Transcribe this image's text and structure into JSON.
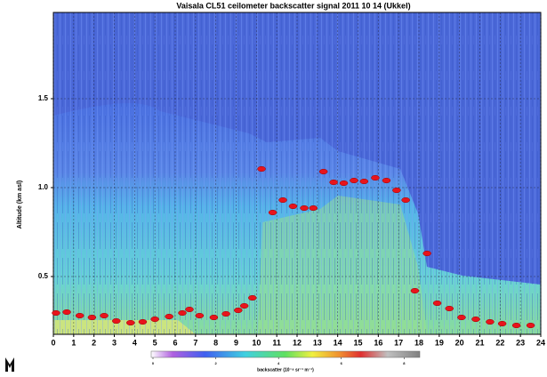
{
  "chart_data": {
    "type": "scatter",
    "title": "Vaisala CL51 ceilometer backscatter signal 2011 10 14 (Ukkel)",
    "y_label": "Altitude (km asl)",
    "xlim": [
      0,
      24
    ],
    "xticks": [
      0,
      1,
      2,
      3,
      4,
      5,
      6,
      7,
      8,
      9,
      10,
      11,
      12,
      13,
      14,
      15,
      16,
      17,
      18,
      19,
      20,
      21,
      22,
      23,
      24
    ],
    "ylim": [
      0.175,
      1.985
    ],
    "yticks": [
      0.5,
      {
        "value": 1.0,
        "label": "1.0"
      },
      1.5
    ],
    "grid": true,
    "series": [
      {
        "color": "#e8141c",
        "x": [
          0.13,
          0.66,
          1.3,
          1.9,
          2.5,
          3.1,
          3.8,
          4.4,
          5.0,
          5.7,
          6.35,
          6.7,
          7.2,
          7.9,
          8.5,
          9.1,
          9.4,
          9.8,
          10.25,
          10.8,
          11.3,
          11.8,
          12.35,
          12.8,
          13.3,
          13.8,
          14.3,
          14.8,
          15.3,
          15.85,
          16.4,
          16.9,
          17.35,
          17.8,
          18.4,
          18.9,
          19.5,
          20.1,
          20.8,
          21.5,
          22.1,
          22.8,
          23.5
        ],
        "values": [
          0.295,
          0.3,
          0.28,
          0.27,
          0.28,
          0.25,
          0.24,
          0.245,
          0.26,
          0.275,
          0.295,
          0.315,
          0.28,
          0.27,
          0.29,
          0.31,
          0.335,
          0.38,
          1.105,
          0.86,
          0.93,
          0.895,
          0.885,
          0.885,
          1.09,
          1.03,
          1.025,
          1.04,
          1.035,
          1.055,
          1.04,
          0.985,
          0.93,
          0.42,
          0.63,
          0.35,
          0.32,
          0.27,
          0.26,
          0.245,
          0.235,
          0.225,
          0.225
        ]
      }
    ],
    "colorbar": {
      "label": "backscatter (10⁻⁸ sr⁻¹ m⁻¹)",
      "lim": [
        0,
        8.5
      ],
      "ticks": [
        0,
        2,
        4,
        6,
        8
      ]
    }
  }
}
